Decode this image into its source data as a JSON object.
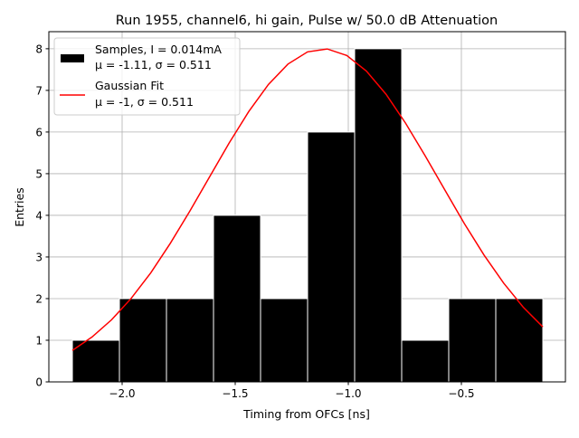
{
  "chart_data": {
    "type": "bar",
    "title": "Run 1955, channel6, hi gain, Pulse w/ 50.0 dB Attenuation",
    "xlabel": "Timing from OFCs [ns]",
    "ylabel": "Entries",
    "xlim": [
      -2.324,
      -0.04
    ],
    "ylim": [
      0,
      8.41
    ],
    "grid": true,
    "legend_position": "top-left",
    "xticks": [
      -2.0,
      -1.5,
      -1.0,
      -0.5
    ],
    "xtick_labels": [
      "−2.0",
      "−1.5",
      "−1.0",
      "−0.5"
    ],
    "yticks": [
      0,
      1,
      2,
      3,
      4,
      5,
      6,
      7,
      8
    ],
    "ytick_labels": [
      "0",
      "1",
      "2",
      "3",
      "4",
      "5",
      "6",
      "7",
      "8"
    ],
    "histogram": {
      "name_line1": "Samples, I = 0.014mA",
      "name_line2": "μ = -1.11, σ = 0.511",
      "bin_edges": [
        -2.22,
        -2.012,
        -1.804,
        -1.596,
        -1.388,
        -1.18,
        -0.972,
        -0.764,
        -0.556,
        -0.348,
        -0.14
      ],
      "counts": [
        1,
        2,
        2,
        4,
        2,
        6,
        8,
        1,
        2,
        2
      ],
      "color": "#000000",
      "edge_color": "#ffffff"
    },
    "fit": {
      "name_line1": "Gaussian Fit",
      "name_line2": "μ = -1, σ = 0.511",
      "amplitude": 8,
      "mean": -1.11,
      "sigma": 0.511,
      "x_range": [
        -2.22,
        -0.14
      ],
      "color": "#ff0000"
    }
  }
}
